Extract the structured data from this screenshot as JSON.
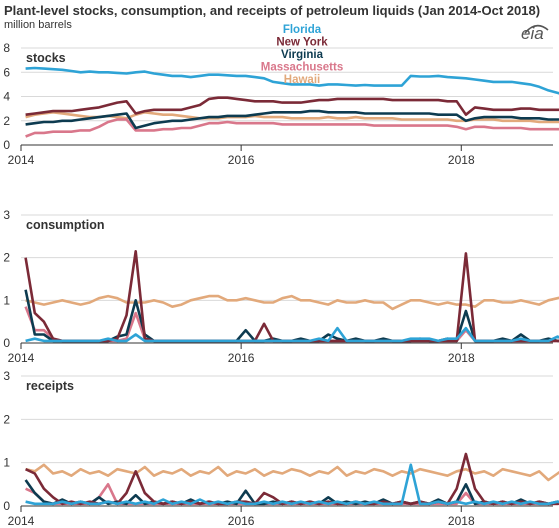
{
  "title": "Plant-level stocks, consumption, and receipts of petroleum liquids (Jan 2014-Oct 2018)",
  "subtitle": "million barrels",
  "logo": "eia",
  "colors": {
    "Florida": "#2ea3d6",
    "New York": "#7b2a37",
    "Virginia": "#0d3b50",
    "Massachusetts": "#d9778b",
    "Hawaii": "#e2a97b"
  },
  "chart_data": [
    {
      "type": "line",
      "title": "stocks",
      "x_start": "2014-01",
      "x_end": "2018-10",
      "x_ticks": [
        "2014",
        "2016",
        "2018"
      ],
      "ylim": [
        0,
        8
      ],
      "y_ticks": [
        "0",
        "2",
        "4",
        "6",
        "8"
      ],
      "grid": "horizontal",
      "legend": "top-center",
      "series": [
        {
          "name": "Florida",
          "values": [
            6.3,
            6.35,
            6.3,
            6.25,
            6.2,
            6.1,
            6.0,
            6.05,
            6.0,
            6.0,
            5.95,
            5.9,
            6.0,
            6.05,
            5.9,
            5.8,
            5.7,
            5.7,
            5.6,
            5.7,
            5.8,
            5.8,
            5.75,
            5.7,
            5.7,
            5.6,
            5.5,
            5.2,
            5.1,
            5.0,
            5.0,
            5.0,
            4.9,
            5.0,
            5.0,
            4.95,
            4.9,
            4.95,
            4.9,
            4.9,
            4.9,
            4.9,
            5.7,
            5.65,
            5.65,
            5.7,
            5.6,
            5.55,
            5.5,
            5.4,
            5.3,
            5.2,
            5.2,
            5.2,
            5.1,
            5.0,
            4.8,
            4.5,
            4.3,
            4.1
          ]
        },
        {
          "name": "New York",
          "values": [
            2.5,
            2.6,
            2.7,
            2.8,
            2.8,
            2.8,
            2.9,
            3.0,
            3.1,
            3.3,
            3.5,
            3.6,
            2.6,
            2.8,
            2.9,
            2.9,
            2.9,
            2.9,
            3.1,
            3.3,
            3.8,
            3.9,
            3.9,
            3.8,
            3.7,
            3.6,
            3.6,
            3.6,
            3.5,
            3.5,
            3.5,
            3.6,
            3.7,
            3.7,
            3.8,
            3.8,
            3.8,
            3.8,
            3.8,
            3.8,
            3.7,
            3.7,
            3.7,
            3.7,
            3.7,
            3.7,
            3.6,
            3.6,
            2.5,
            3.1,
            3.0,
            2.9,
            2.9,
            2.9,
            3.0,
            3.0,
            2.9,
            2.9,
            2.9,
            2.9
          ]
        },
        {
          "name": "Virginia",
          "values": [
            1.7,
            1.8,
            1.9,
            1.9,
            2.0,
            2.0,
            2.1,
            2.2,
            2.3,
            2.4,
            2.5,
            2.6,
            1.4,
            1.6,
            1.8,
            1.9,
            2.0,
            2.0,
            2.1,
            2.2,
            2.3,
            2.3,
            2.4,
            2.4,
            2.4,
            2.5,
            2.6,
            2.7,
            2.7,
            2.7,
            2.7,
            2.8,
            2.8,
            2.7,
            2.7,
            2.7,
            2.7,
            2.6,
            2.6,
            2.6,
            2.6,
            2.6,
            2.6,
            2.6,
            2.6,
            2.5,
            2.5,
            2.5,
            2.0,
            2.2,
            2.3,
            2.3,
            2.3,
            2.3,
            2.2,
            2.2,
            2.2,
            2.1,
            2.1,
            2.1
          ]
        },
        {
          "name": "Massachusetts",
          "values": [
            0.7,
            1.0,
            1.0,
            1.1,
            1.1,
            1.1,
            1.2,
            1.2,
            1.5,
            1.9,
            2.1,
            2.1,
            1.2,
            1.2,
            1.2,
            1.3,
            1.3,
            1.4,
            1.4,
            1.6,
            1.8,
            1.8,
            1.9,
            1.8,
            1.8,
            1.8,
            1.8,
            1.8,
            1.7,
            1.7,
            1.7,
            1.7,
            1.7,
            1.7,
            1.7,
            1.7,
            1.7,
            1.7,
            1.6,
            1.6,
            1.6,
            1.6,
            1.6,
            1.6,
            1.6,
            1.6,
            1.6,
            1.5,
            1.3,
            1.5,
            1.5,
            1.4,
            1.4,
            1.4,
            1.4,
            1.3,
            1.3,
            1.3,
            1.3,
            1.3
          ]
        },
        {
          "name": "Hawaii",
          "values": [
            2.3,
            2.5,
            2.6,
            2.7,
            2.6,
            2.5,
            2.4,
            2.3,
            2.3,
            2.4,
            2.3,
            2.2,
            2.5,
            2.7,
            2.6,
            2.5,
            2.5,
            2.4,
            2.3,
            2.2,
            2.2,
            2.2,
            2.3,
            2.3,
            2.3,
            2.4,
            2.3,
            2.3,
            2.3,
            2.2,
            2.2,
            2.2,
            2.2,
            2.3,
            2.2,
            2.2,
            2.3,
            2.2,
            2.2,
            2.2,
            2.2,
            2.1,
            2.1,
            2.1,
            2.1,
            2.1,
            2.1,
            2.0,
            2.0,
            2.1,
            2.1,
            2.1,
            2.0,
            2.0,
            2.0,
            2.0,
            1.9,
            1.9,
            1.9,
            1.9
          ]
        }
      ]
    },
    {
      "type": "line",
      "title": "consumption",
      "x_start": "2014-01",
      "x_end": "2018-10",
      "x_ticks": [
        "2014",
        "2016",
        "2018"
      ],
      "ylim": [
        0,
        3
      ],
      "y_ticks": [
        "0",
        "1",
        "2",
        "3"
      ],
      "grid": "horizontal",
      "series": [
        {
          "name": "Florida",
          "values": [
            0.05,
            0.1,
            0.05,
            0.05,
            0.05,
            0.05,
            0.05,
            0.05,
            0.05,
            0.1,
            0.05,
            0.05,
            0.2,
            0.05,
            0.05,
            0.05,
            0.05,
            0.05,
            0.05,
            0.05,
            0.05,
            0.05,
            0.05,
            0.05,
            0.05,
            0.05,
            0.05,
            0.05,
            0.05,
            0.05,
            0.05,
            0.05,
            0.1,
            0.05,
            0.35,
            0.05,
            0.05,
            0.05,
            0.05,
            0.05,
            0.05,
            0.05,
            0.1,
            0.1,
            0.1,
            0.05,
            0.1,
            0.1,
            0.35,
            0.05,
            0.05,
            0.05,
            0.05,
            0.05,
            0.1,
            0.05,
            0.05,
            0.05,
            0.15,
            0.05
          ]
        },
        {
          "name": "New York",
          "values": [
            2.0,
            0.7,
            0.5,
            0.1,
            0.05,
            0.05,
            0.05,
            0.05,
            0.05,
            0.05,
            0.1,
            0.65,
            2.15,
            0.1,
            0.05,
            0.05,
            0.05,
            0.05,
            0.05,
            0.05,
            0.05,
            0.05,
            0.05,
            0.05,
            0.05,
            0.05,
            0.45,
            0.05,
            0.05,
            0.05,
            0.05,
            0.05,
            0.05,
            0.05,
            0.05,
            0.05,
            0.05,
            0.05,
            0.05,
            0.05,
            0.05,
            0.05,
            0.05,
            0.05,
            0.05,
            0.05,
            0.05,
            0.05,
            2.1,
            0.05,
            0.05,
            0.05,
            0.05,
            0.05,
            0.05,
            0.05,
            0.05,
            0.05,
            0.05,
            0.05
          ]
        },
        {
          "name": "Virginia",
          "values": [
            1.25,
            0.2,
            0.2,
            0.05,
            0.05,
            0.05,
            0.05,
            0.05,
            0.05,
            0.05,
            0.15,
            0.2,
            1.0,
            0.2,
            0.05,
            0.05,
            0.05,
            0.05,
            0.05,
            0.05,
            0.05,
            0.05,
            0.05,
            0.05,
            0.3,
            0.05,
            0.05,
            0.1,
            0.05,
            0.05,
            0.1,
            0.05,
            0.05,
            0.2,
            0.1,
            0.05,
            0.1,
            0.05,
            0.05,
            0.1,
            0.05,
            0.05,
            0.05,
            0.1,
            0.05,
            0.05,
            0.1,
            0.05,
            0.75,
            0.05,
            0.05,
            0.05,
            0.1,
            0.05,
            0.2,
            0.05,
            0.05,
            0.1,
            0.05,
            0.05
          ]
        },
        {
          "name": "Massachusetts",
          "values": [
            0.85,
            0.3,
            0.3,
            0.1,
            0.05,
            0.05,
            0.05,
            0.05,
            0.05,
            0.05,
            0.05,
            0.1,
            0.7,
            0.1,
            0.05,
            0.05,
            0.05,
            0.05,
            0.05,
            0.05,
            0.05,
            0.05,
            0.05,
            0.05,
            0.05,
            0.05,
            0.05,
            0.05,
            0.05,
            0.05,
            0.05,
            0.05,
            0.05,
            0.05,
            0.05,
            0.05,
            0.05,
            0.05,
            0.05,
            0.05,
            0.05,
            0.05,
            0.05,
            0.05,
            0.05,
            0.05,
            0.05,
            0.05,
            0.3,
            0.05,
            0.05,
            0.05,
            0.05,
            0.05,
            0.05,
            0.05,
            0.05,
            0.05,
            0.05,
            0.05
          ]
        },
        {
          "name": "Hawaii",
          "values": [
            1.0,
            0.95,
            0.9,
            0.95,
            1.0,
            0.95,
            0.9,
            0.95,
            1.05,
            1.1,
            1.05,
            0.95,
            0.95,
            0.95,
            1.0,
            0.95,
            0.85,
            0.9,
            1.0,
            1.05,
            1.1,
            1.1,
            1.0,
            1.0,
            1.05,
            1.0,
            0.95,
            0.95,
            1.05,
            1.1,
            1.0,
            1.0,
            0.95,
            0.9,
            1.0,
            0.95,
            0.95,
            1.0,
            0.95,
            0.95,
            0.8,
            0.9,
            1.0,
            1.0,
            0.95,
            0.9,
            0.95,
            0.9,
            0.9,
            0.85,
            1.0,
            1.0,
            0.95,
            0.95,
            1.0,
            0.95,
            0.9,
            1.0,
            1.05,
            1.1
          ]
        }
      ]
    },
    {
      "type": "line",
      "title": "receipts",
      "x_start": "2014-01",
      "x_end": "2018-10",
      "x_ticks": [
        "2014",
        "2016",
        "2018"
      ],
      "ylim": [
        0,
        3
      ],
      "y_ticks": [
        "0",
        "1",
        "2",
        "3"
      ],
      "grid": "horizontal",
      "series": [
        {
          "name": "Florida",
          "values": [
            0.1,
            0.05,
            0.05,
            0.05,
            0.1,
            0.05,
            0.1,
            0.05,
            0.05,
            0.1,
            0.05,
            0.1,
            0.05,
            0.1,
            0.05,
            0.15,
            0.05,
            0.1,
            0.05,
            0.15,
            0.05,
            0.1,
            0.05,
            0.1,
            0.05,
            0.05,
            0.1,
            0.05,
            0.1,
            0.05,
            0.1,
            0.05,
            0.1,
            0.05,
            0.1,
            0.05,
            0.1,
            0.05,
            0.1,
            0.05,
            0.05,
            0.05,
            0.95,
            0.05,
            0.05,
            0.1,
            0.05,
            0.1,
            0.05,
            0.1,
            0.05,
            0.1,
            0.05,
            0.1,
            0.05,
            0.1,
            0.05,
            0.05,
            0.1,
            0.05
          ]
        },
        {
          "name": "New York",
          "values": [
            0.85,
            0.75,
            0.4,
            0.2,
            0.05,
            0.1,
            0.05,
            0.1,
            0.05,
            0.1,
            0.05,
            0.3,
            0.8,
            0.3,
            0.1,
            0.05,
            0.1,
            0.05,
            0.1,
            0.05,
            0.1,
            0.05,
            0.05,
            0.1,
            0.1,
            0.05,
            0.3,
            0.2,
            0.05,
            0.1,
            0.05,
            0.1,
            0.05,
            0.1,
            0.05,
            0.05,
            0.1,
            0.05,
            0.05,
            0.1,
            0.05,
            0.1,
            0.05,
            0.1,
            0.05,
            0.1,
            0.05,
            0.4,
            1.2,
            0.4,
            0.1,
            0.05,
            0.1,
            0.05,
            0.1,
            0.05,
            0.1,
            0.05,
            0.05,
            0.1
          ]
        },
        {
          "name": "Virginia",
          "values": [
            0.6,
            0.3,
            0.1,
            0.05,
            0.15,
            0.05,
            0.1,
            0.05,
            0.2,
            0.05,
            0.1,
            0.05,
            0.25,
            0.05,
            0.1,
            0.05,
            0.1,
            0.05,
            0.15,
            0.05,
            0.1,
            0.05,
            0.1,
            0.05,
            0.35,
            0.05,
            0.05,
            0.1,
            0.05,
            0.1,
            0.05,
            0.1,
            0.05,
            0.2,
            0.05,
            0.1,
            0.05,
            0.1,
            0.05,
            0.15,
            0.05,
            0.1,
            0.05,
            0.1,
            0.05,
            0.15,
            0.05,
            0.1,
            0.5,
            0.05,
            0.1,
            0.05,
            0.1,
            0.05,
            0.15,
            0.05,
            0.1,
            0.05,
            0.1,
            0.05
          ]
        },
        {
          "name": "Massachusetts",
          "values": [
            0.4,
            0.3,
            0.1,
            0.05,
            0.05,
            0.05,
            0.05,
            0.05,
            0.2,
            0.5,
            0.05,
            0.05,
            0.05,
            0.05,
            0.05,
            0.05,
            0.05,
            0.05,
            0.05,
            0.05,
            0.05,
            0.05,
            0.05,
            0.05,
            0.05,
            0.05,
            0.05,
            0.05,
            0.05,
            0.05,
            0.05,
            0.05,
            0.05,
            0.05,
            0.05,
            0.05,
            0.05,
            0.05,
            0.05,
            0.05,
            0.05,
            0.05,
            0.05,
            0.05,
            0.05,
            0.05,
            0.05,
            0.05,
            0.3,
            0.05,
            0.05,
            0.05,
            0.05,
            0.05,
            0.05,
            0.05,
            0.05,
            0.05,
            0.05,
            0.05
          ]
        },
        {
          "name": "Hawaii",
          "values": [
            0.85,
            0.8,
            0.95,
            0.75,
            0.8,
            0.7,
            0.85,
            0.75,
            0.8,
            0.7,
            0.85,
            0.8,
            0.75,
            0.9,
            0.7,
            0.8,
            0.75,
            0.85,
            0.7,
            0.8,
            0.75,
            0.9,
            0.7,
            0.8,
            0.75,
            0.85,
            0.7,
            0.8,
            0.75,
            0.85,
            0.8,
            0.7,
            0.8,
            0.75,
            0.9,
            0.7,
            0.8,
            0.75,
            0.85,
            0.8,
            0.7,
            0.8,
            0.75,
            0.85,
            0.8,
            0.75,
            0.7,
            0.8,
            0.85,
            0.75,
            0.8,
            0.7,
            0.85,
            0.8,
            0.75,
            0.7,
            0.8,
            0.6,
            0.75,
            0.9
          ]
        }
      ]
    }
  ]
}
